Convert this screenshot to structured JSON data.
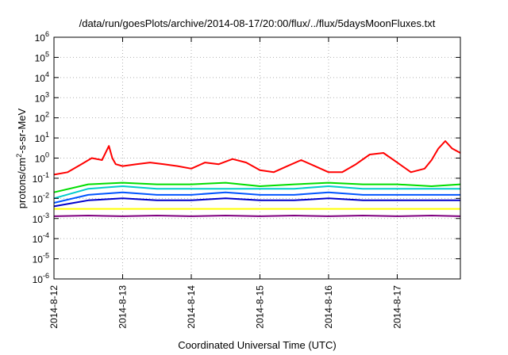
{
  "chart_data": {
    "type": "line",
    "title": "/data/run/goesPlots/archive/2014-08-17/20:00/flux/../flux/5daysMoonFluxes.txt",
    "xlabel": "Coordinated Universal Time (UTC)",
    "ylabel": "protons/cm2-s-sr-MeV",
    "ylabel_main": "protons/cm",
    "ylabel_sup": "2",
    "ylabel_rest": "-s-sr-MeV",
    "yscale": "log",
    "ylim": [
      1e-06,
      1000000.0
    ],
    "xlim_days": [
      0,
      5.92
    ],
    "grid": true,
    "legend": "none",
    "x_tick_labels": [
      "2014-8-12",
      "2014-8-13",
      "2014-8-14",
      "2014-8-15",
      "2014-8-16",
      "2014-8-17"
    ],
    "y_tick_exponents": [
      -6,
      -5,
      -4,
      -3,
      -2,
      -1,
      0,
      1,
      2,
      3,
      4,
      5,
      6
    ],
    "series": [
      {
        "color": "#ff0000",
        "x": [
          0,
          0.2,
          0.4,
          0.55,
          0.7,
          0.8,
          0.85,
          0.9,
          1.0,
          1.2,
          1.4,
          1.6,
          1.8,
          2.0,
          2.2,
          2.4,
          2.6,
          2.8,
          3.0,
          3.2,
          3.4,
          3.6,
          3.8,
          4.0,
          4.2,
          4.4,
          4.6,
          4.8,
          5.0,
          5.2,
          5.4,
          5.5,
          5.6,
          5.7,
          5.8,
          5.92
        ],
        "y": [
          0.15,
          0.2,
          0.5,
          1.0,
          0.8,
          4.0,
          1.0,
          0.5,
          0.4,
          0.5,
          0.6,
          0.5,
          0.4,
          0.3,
          0.6,
          0.5,
          0.9,
          0.6,
          0.25,
          0.2,
          0.4,
          0.8,
          0.4,
          0.2,
          0.2,
          0.5,
          1.5,
          1.8,
          0.6,
          0.2,
          0.3,
          0.8,
          3.0,
          7.0,
          3.0,
          1.8
        ]
      },
      {
        "color": "#00dd00",
        "x": [
          0,
          0.5,
          1,
          1.5,
          2,
          2.5,
          3,
          3.5,
          4,
          4.5,
          5,
          5.5,
          5.92
        ],
        "y": [
          0.02,
          0.05,
          0.06,
          0.05,
          0.05,
          0.06,
          0.04,
          0.05,
          0.06,
          0.05,
          0.05,
          0.04,
          0.05
        ]
      },
      {
        "color": "#00cccc",
        "x": [
          0,
          0.5,
          1,
          1.5,
          2,
          2.5,
          3,
          3.5,
          4,
          4.5,
          5,
          5.5,
          5.92
        ],
        "y": [
          0.01,
          0.03,
          0.04,
          0.03,
          0.03,
          0.03,
          0.03,
          0.03,
          0.04,
          0.03,
          0.03,
          0.03,
          0.03
        ]
      },
      {
        "color": "#0055ff",
        "x": [
          0,
          0.5,
          1,
          1.5,
          2,
          2.5,
          3,
          3.5,
          4,
          4.5,
          5,
          5.5,
          5.92
        ],
        "y": [
          0.006,
          0.015,
          0.02,
          0.015,
          0.015,
          0.02,
          0.015,
          0.015,
          0.02,
          0.015,
          0.015,
          0.015,
          0.015
        ]
      },
      {
        "color": "#0000cc",
        "x": [
          0,
          0.5,
          1,
          1.5,
          2,
          2.5,
          3,
          3.5,
          4,
          4.5,
          5,
          5.5,
          5.92
        ],
        "y": [
          0.004,
          0.008,
          0.01,
          0.008,
          0.008,
          0.01,
          0.008,
          0.008,
          0.01,
          0.008,
          0.008,
          0.008,
          0.008
        ]
      },
      {
        "color": "#ffff00",
        "x": [
          0,
          0.5,
          1,
          1.5,
          2,
          2.5,
          3,
          3.5,
          4,
          4.5,
          5,
          5.5,
          5.92
        ],
        "y": [
          0.003,
          0.003,
          0.003,
          0.003,
          0.003,
          0.003,
          0.003,
          0.003,
          0.003,
          0.003,
          0.003,
          0.003,
          0.003
        ]
      },
      {
        "color": "#800080",
        "x": [
          0,
          0.5,
          1,
          1.5,
          2,
          2.5,
          3,
          3.5,
          4,
          4.5,
          5,
          5.5,
          5.92
        ],
        "y": [
          0.0013,
          0.0014,
          0.0013,
          0.0014,
          0.0013,
          0.0014,
          0.0013,
          0.0014,
          0.0013,
          0.0014,
          0.0013,
          0.0014,
          0.0013
        ]
      }
    ]
  }
}
